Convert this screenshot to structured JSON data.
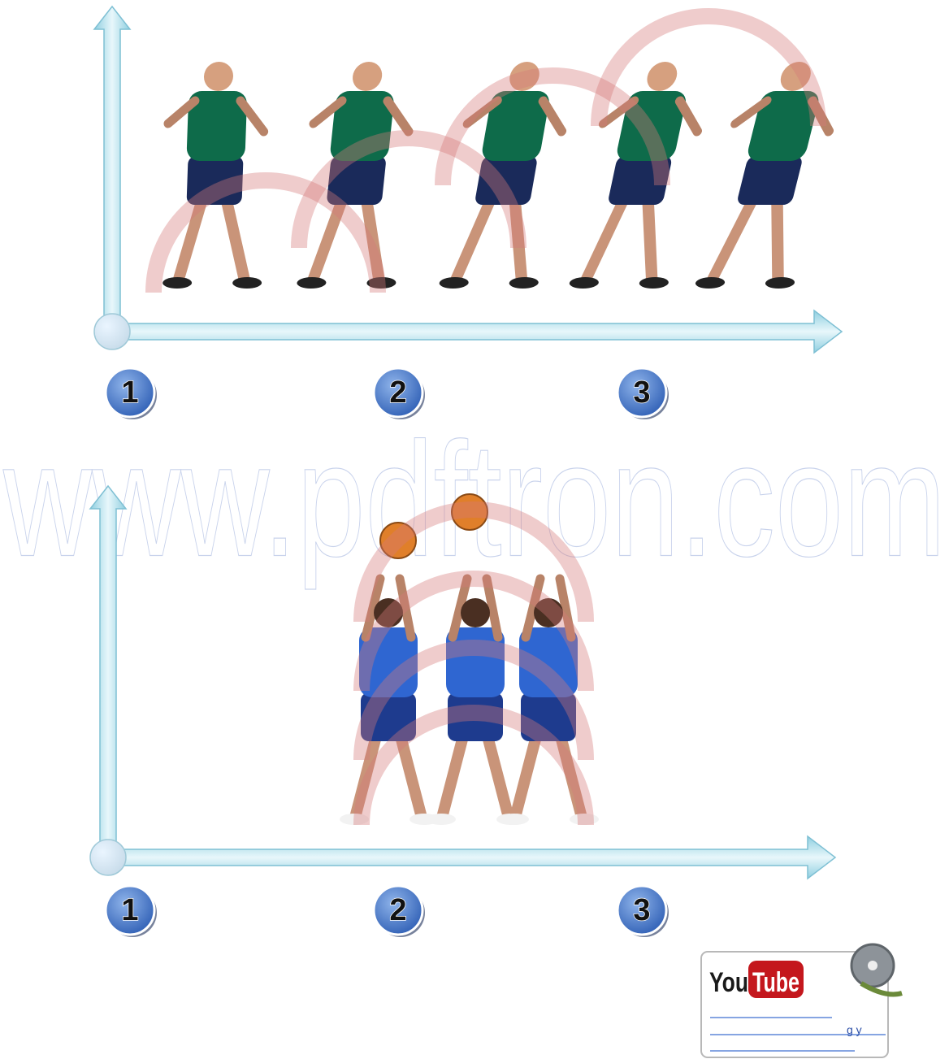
{
  "watermark": "www.pdftron.com",
  "diagrams": [
    {
      "steps": [
        "1",
        "2",
        "3"
      ]
    },
    {
      "steps": [
        "1",
        "2",
        "3"
      ]
    }
  ],
  "youtube": {
    "logo_you": "You",
    "logo_tube": "Tube",
    "caption": "g y"
  }
}
